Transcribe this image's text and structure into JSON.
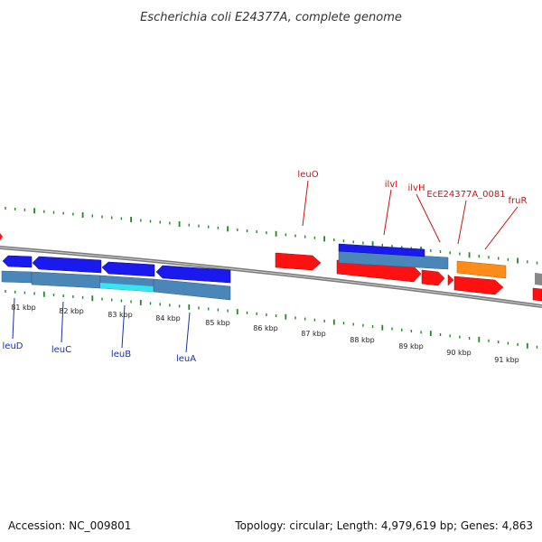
{
  "title": "Escherichia coli E24377A, complete genome",
  "accession_text": "Accession: NC_009801",
  "summary_text": "Topology: circular; Length: 4,979,619 bp; Genes: 4,863",
  "colors": {
    "forward_gene": "#ff1111",
    "reverse_gene": "#1a1aee",
    "cds_band": "#4a86b8",
    "highlight": "#33e6f0",
    "orange_gene": "#ff8c1a",
    "backbone": "#7a7a7a",
    "ticks": "#228822",
    "label_blue": "#1a2fa6",
    "label_red": "#cc1111"
  },
  "kbp_labels": [
    "81 kbp",
    "82 kbp",
    "83 kbp",
    "84 kbp",
    "85 kbp",
    "86 kbp",
    "87 kbp",
    "88 kbp",
    "89 kbp",
    "90 kbp",
    "91 kbp"
  ],
  "gene_labels_below": [
    "leuD",
    "leuC",
    "leuB",
    "leuA"
  ],
  "gene_labels_above": [
    "leuO",
    "ilvI",
    "ilvH",
    "EcE24377A_0081",
    "fruR"
  ]
}
